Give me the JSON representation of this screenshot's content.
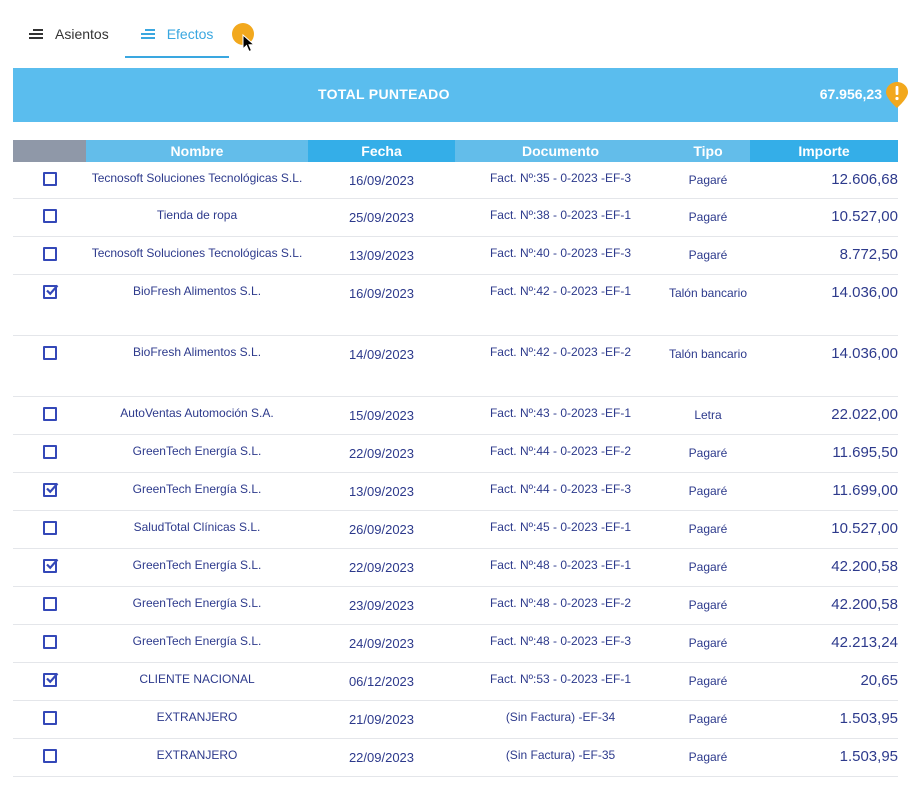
{
  "tabs": [
    {
      "label": "Asientos",
      "active": false
    },
    {
      "label": "Efectos",
      "active": true
    }
  ],
  "total": {
    "label": "TOTAL PUNTEADO",
    "value": "67.956,23"
  },
  "table": {
    "headers": {
      "nombre": "Nombre",
      "fecha": "Fecha",
      "documento": "Documento",
      "tipo": "Tipo",
      "importe": "Importe"
    },
    "rows": [
      {
        "checked": false,
        "nombre": "Tecnosoft Soluciones Tecnológicas S.L.",
        "fecha": "16/09/2023",
        "documento": "Fact. Nº:35 - 0-2023 -EF-3",
        "tipo": "Pagaré",
        "importe": "12.606,68"
      },
      {
        "checked": false,
        "nombre": "Tienda de ropa",
        "fecha": "25/09/2023",
        "documento": "Fact. Nº:38 - 0-2023 -EF-1",
        "tipo": "Pagaré",
        "importe": "10.527,00"
      },
      {
        "checked": false,
        "nombre": "Tecnosoft Soluciones Tecnológicas S.L.",
        "fecha": "13/09/2023",
        "documento": "Fact. Nº:40 - 0-2023 -EF-3",
        "tipo": "Pagaré",
        "importe": "8.772,50"
      },
      {
        "checked": true,
        "nombre": "BioFresh Alimentos S.L.",
        "fecha": "16/09/2023",
        "documento": "Fact. Nº:42 - 0-2023 -EF-1",
        "tipo": "Talón bancario",
        "importe": "14.036,00"
      },
      {
        "checked": false,
        "nombre": "BioFresh Alimentos S.L.",
        "fecha": "14/09/2023",
        "documento": "Fact. Nº:42 - 0-2023 -EF-2",
        "tipo": "Talón bancario",
        "importe": "14.036,00"
      },
      {
        "checked": false,
        "nombre": "AutoVentas Automoción S.A.",
        "fecha": "15/09/2023",
        "documento": "Fact. Nº:43 - 0-2023 -EF-1",
        "tipo": "Letra",
        "importe": "22.022,00"
      },
      {
        "checked": false,
        "nombre": "GreenTech Energía S.L.",
        "fecha": "22/09/2023",
        "documento": "Fact. Nº:44 - 0-2023 -EF-2",
        "tipo": "Pagaré",
        "importe": "11.695,50"
      },
      {
        "checked": true,
        "nombre": "GreenTech Energía S.L.",
        "fecha": "13/09/2023",
        "documento": "Fact. Nº:44 - 0-2023 -EF-3",
        "tipo": "Pagaré",
        "importe": "11.699,00"
      },
      {
        "checked": false,
        "nombre": "SaludTotal Clínicas S.L.",
        "fecha": "26/09/2023",
        "documento": "Fact. Nº:45 - 0-2023 -EF-1",
        "tipo": "Pagaré",
        "importe": "10.527,00"
      },
      {
        "checked": true,
        "nombre": "GreenTech Energía S.L.",
        "fecha": "22/09/2023",
        "documento": "Fact. Nº:48 - 0-2023 -EF-1",
        "tipo": "Pagaré",
        "importe": "42.200,58"
      },
      {
        "checked": false,
        "nombre": "GreenTech Energía S.L.",
        "fecha": "23/09/2023",
        "documento": "Fact. Nº:48 - 0-2023 -EF-2",
        "tipo": "Pagaré",
        "importe": "42.200,58"
      },
      {
        "checked": false,
        "nombre": "GreenTech Energía S.L.",
        "fecha": "24/09/2023",
        "documento": "Fact. Nº:48 - 0-2023 -EF-3",
        "tipo": "Pagaré",
        "importe": "42.213,24"
      },
      {
        "checked": true,
        "nombre": "CLIENTE NACIONAL",
        "fecha": "06/12/2023",
        "documento": "Fact. Nº:53 - 0-2023 -EF-1",
        "tipo": "Pagaré",
        "importe": "20,65"
      },
      {
        "checked": false,
        "nombre": "EXTRANJERO",
        "fecha": "21/09/2023",
        "documento": "(Sin Factura) -EF-34",
        "tipo": "Pagaré",
        "importe": "1.503,95"
      },
      {
        "checked": false,
        "nombre": "EXTRANJERO",
        "fecha": "22/09/2023",
        "documento": "(Sin Factura) -EF-35",
        "tipo": "Pagaré",
        "importe": "1.503,95"
      }
    ]
  },
  "colors": {
    "accent": "#3aa7e0",
    "total_bar": "#5abdee",
    "row_text": "#2d3a8c",
    "checkbox": "#3448b8",
    "cursor_highlight": "#f2a81d",
    "warning": "#f2a81d"
  },
  "icons": {
    "tab": "list-lines-icon",
    "total": "warning-exclamation-icon",
    "checkbox_checked": "checkbox-checked-icon",
    "checkbox_unchecked": "checkbox-unchecked-icon",
    "cursor": "mouse-pointer-icon"
  }
}
